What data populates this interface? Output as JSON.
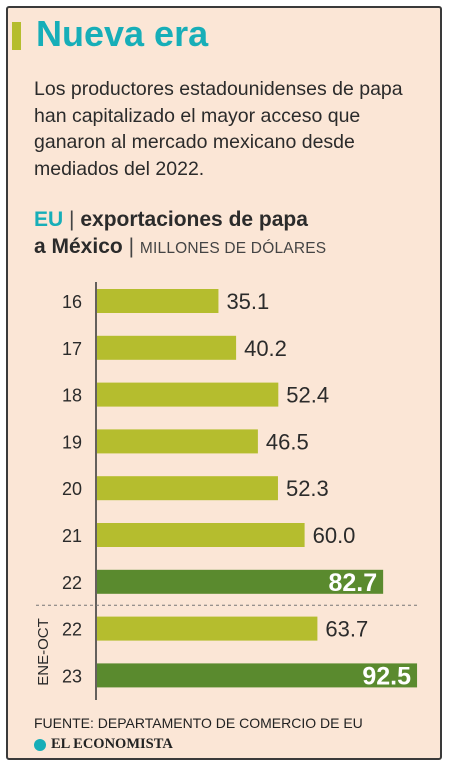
{
  "header": {
    "title": "Nueva era",
    "intro": "Los productores estadounidenses de papa han capitalizado el mayor acceso que ganaron al mercado mexicano desde mediados del 2022."
  },
  "chart_heading": {
    "eu": "EU",
    "separator": "|",
    "line1": "exportaciones de papa",
    "line2": "a México",
    "units": "MILLONES DE DÓLARES"
  },
  "chart_data": {
    "type": "bar",
    "orientation": "horizontal",
    "categories": [
      "16",
      "17",
      "18",
      "19",
      "20",
      "21",
      "22",
      "22",
      "23"
    ],
    "values": [
      35.1,
      40.2,
      52.4,
      46.5,
      52.3,
      60.0,
      82.7,
      63.7,
      92.5
    ],
    "value_labels": [
      "35.1",
      "40.2",
      "52.4",
      "46.5",
      "52.3",
      "60.0",
      "82.7",
      "63.7",
      "92.5"
    ],
    "highlight": [
      false,
      false,
      false,
      false,
      false,
      false,
      true,
      false,
      true
    ],
    "group_label": "ENE-OCT",
    "colors": {
      "bar": "#b5bd2e",
      "highlight": "#5a8a2e",
      "axis": "#333333",
      "text": "#2b2b2b",
      "highlight_text": "#ffffff"
    },
    "xlim": [
      0,
      95
    ]
  },
  "footer": {
    "source": "FUENTE: DEPARTAMENTO DE COMERCIO DE EU",
    "brand": "EL ECONOMISTA"
  }
}
